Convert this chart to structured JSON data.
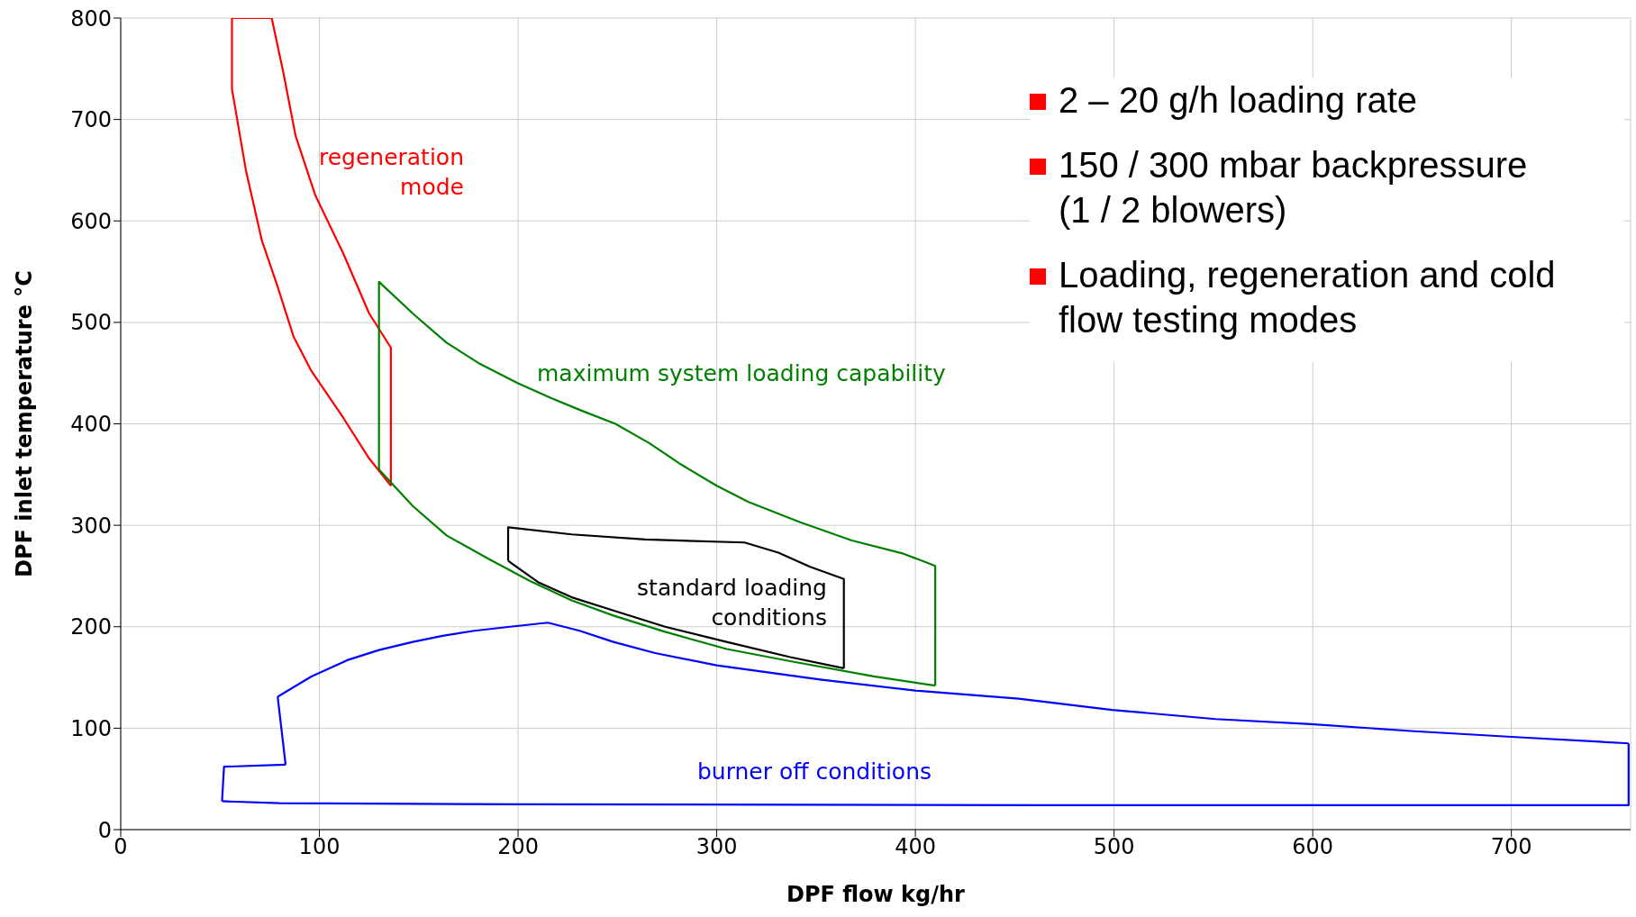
{
  "chart_data": {
    "type": "line",
    "xlabel": "DPF flow kg/hr",
    "ylabel": "DPF inlet temperature °C",
    "xlim": [
      0,
      760
    ],
    "ylim": [
      0,
      800
    ],
    "xticks": [
      0,
      100,
      200,
      300,
      400,
      500,
      600,
      700
    ],
    "yticks": [
      0,
      100,
      200,
      300,
      400,
      500,
      600,
      700,
      800
    ],
    "grid": true,
    "legend": false,
    "marker": "none",
    "line_style": "solid",
    "series": [
      {
        "name": "regeneration mode",
        "color": "#ff0000",
        "x": [
          56,
          76,
          82,
          88,
          98,
          112,
          125,
          136,
          136
        ],
        "values": [
          800,
          800,
          745,
          684,
          625,
          568,
          509,
          475,
          339
        ]
      },
      {
        "color": "#ff0000",
        "x": [
          56,
          56,
          63,
          71,
          79,
          87,
          96,
          112,
          125,
          136
        ],
        "values": [
          800,
          730,
          650,
          581,
          535,
          486,
          452,
          406,
          366,
          339
        ]
      },
      {
        "name": "maximum system loading capability",
        "color": "#008000",
        "x": [
          130,
          130,
          148,
          164,
          180,
          200,
          217,
          232,
          249,
          266,
          282,
          300,
          316,
          342,
          368,
          394,
          410,
          410
        ],
        "values": [
          355,
          540,
          507,
          480,
          460,
          440,
          425,
          413,
          400,
          381,
          360,
          339,
          323,
          303,
          285,
          272,
          260,
          142
        ]
      },
      {
        "color": "#008000",
        "x": [
          130,
          147,
          164,
          185,
          206,
          227,
          248,
          274,
          305,
          337,
          379,
          410
        ],
        "values": [
          355,
          319,
          290,
          267,
          245,
          226,
          211,
          195,
          178,
          166,
          151,
          142
        ]
      },
      {
        "name": "standard loading conditions",
        "color": "#000000",
        "x": [
          195,
          195,
          227,
          264,
          314,
          331,
          347,
          364,
          364
        ],
        "values": [
          265,
          298,
          291,
          286,
          283,
          273,
          259,
          247,
          159
        ]
      },
      {
        "color": "#000000",
        "x": [
          195,
          210,
          227,
          248,
          274,
          305,
          337,
          364
        ],
        "values": [
          265,
          244,
          229,
          216,
          200,
          185,
          170,
          159
        ]
      },
      {
        "name": "burner off conditions",
        "color": "#0000ff",
        "x": [
          51,
          80,
          201,
          463,
          759,
          759
        ],
        "values": [
          28,
          26,
          25,
          24,
          24,
          85
        ]
      },
      {
        "color": "#0000ff",
        "x": [
          79,
          96,
          114,
          130,
          147,
          162,
          178,
          196,
          215,
          231,
          248,
          269,
          300,
          352,
          400,
          452,
          499,
          551,
          599,
          651,
          704,
          759
        ],
        "values": [
          131,
          151,
          167,
          177,
          185,
          191,
          196,
          200,
          204,
          196,
          185,
          174,
          162,
          148,
          137,
          129,
          118,
          109,
          104,
          97,
          91,
          85
        ]
      },
      {
        "color": "#0000ff",
        "x": [
          51,
          52,
          83
        ],
        "values": [
          28,
          62,
          64
        ]
      },
      {
        "color": "#0000ff",
        "x": [
          79,
          83
        ],
        "values": [
          131,
          64
        ]
      }
    ],
    "annotations": [
      "2 – 20 g/h  loading rate",
      "150 / 300 mbar backpressure\n(1 / 2 blowers)",
      "Loading, regeneration and cold flow testing modes"
    ]
  }
}
